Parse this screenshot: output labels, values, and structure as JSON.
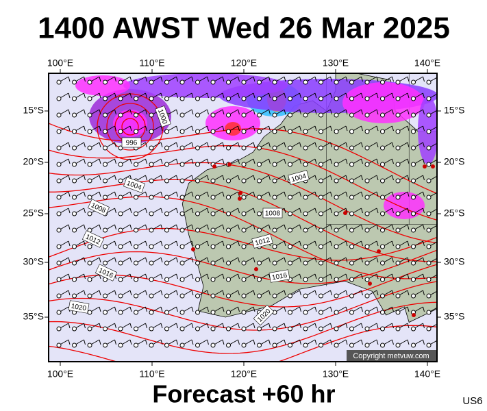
{
  "title": "1400 AWST Wed 26 Mar 2025",
  "footer": "Forecast +60 hr",
  "code": "US6",
  "copyright": "Copyright metvuw.com",
  "lon_labels": [
    "100°E",
    "110°E",
    "120°E",
    "130°E",
    "140°E"
  ],
  "lat_labels": [
    "15°S",
    "20°S",
    "25°S",
    "30°S",
    "35°S"
  ],
  "isobar_labels": [
    "1000",
    "996",
    "1004",
    "1008",
    "1012",
    "1016",
    "1020",
    "1004",
    "1008",
    "1012",
    "1016",
    "1020"
  ]
}
